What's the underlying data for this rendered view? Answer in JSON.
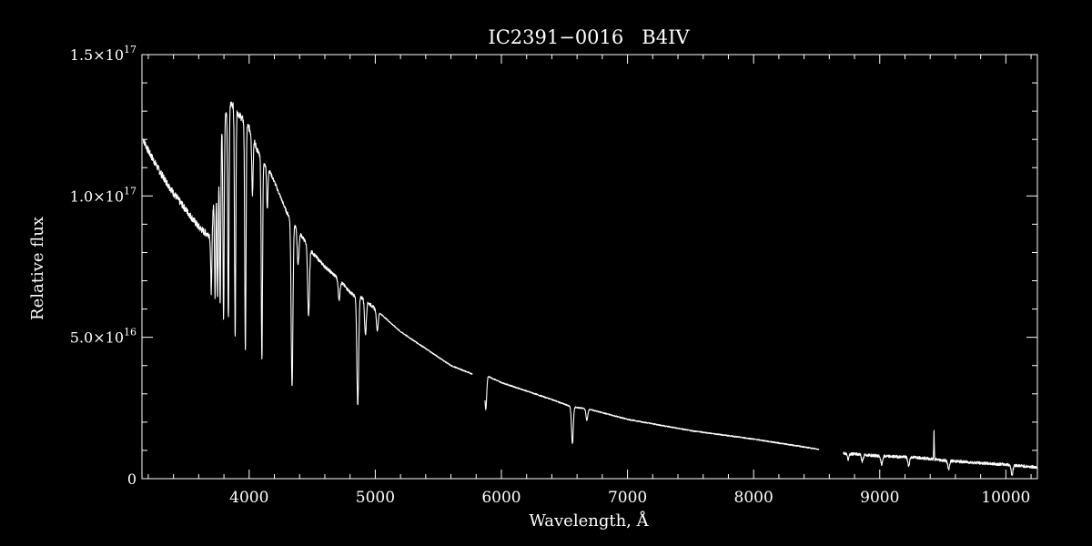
{
  "chart_data": {
    "type": "line",
    "title": "IC2391−0016   B4IV",
    "xlabel": "Wavelength, Å",
    "ylabel": "Relative flux",
    "xlim": [
      3150,
      10250
    ],
    "ylim": [
      0,
      1.5e+17
    ],
    "x_ticks": [
      {
        "value": 4000,
        "label": "4000"
      },
      {
        "value": 5000,
        "label": "5000"
      },
      {
        "value": 6000,
        "label": "6000"
      },
      {
        "value": 7000,
        "label": "7000"
      },
      {
        "value": 8000,
        "label": "8000"
      },
      {
        "value": 9000,
        "label": "9000"
      },
      {
        "value": 10000,
        "label": "10000"
      }
    ],
    "y_ticks": [
      {
        "value": 0,
        "mantissa": "0",
        "exponent": ""
      },
      {
        "value": 5e+16,
        "mantissa": "5.0×10",
        "exponent": "16"
      },
      {
        "value": 1e+17,
        "mantissa": "1.0×10",
        "exponent": "17"
      },
      {
        "value": 1.5e+17,
        "mantissa": "1.5×10",
        "exponent": "17"
      }
    ],
    "colors": {
      "background": "#000000",
      "foreground": "#ffffff"
    },
    "grid": false,
    "legend": "none",
    "series": [
      {
        "x": [
          3160,
          3200,
          3300,
          3400,
          3500,
          3600,
          3650,
          3700,
          3720,
          3750,
          3780,
          3820,
          3860,
          3900,
          3950,
          4000,
          4050,
          4100,
          4150,
          4200,
          4300,
          4400,
          4500,
          4600,
          4700,
          4800,
          4850,
          4900,
          5000,
          5100,
          5200,
          5400,
          5600,
          5770,
          5880,
          6000,
          6200,
          6400,
          6550,
          6700,
          7000,
          7500,
          8000,
          8500,
          8720,
          9000,
          9300,
          9500,
          9800,
          10000,
          10250
        ],
        "y": [
          1.2e+17,
          1.16e+17,
          1.08e+17,
          1.01e+17,
          9.5e+16,
          8.9e+16,
          8.7e+16,
          8.6e+16,
          1e+17,
          1.15e+17,
          1.25e+17,
          1.3e+17,
          1.33e+17,
          1.3e+17,
          1.27e+17,
          1.24e+17,
          1.18e+17,
          1.12e+17,
          1.1e+17,
          1.05e+17,
          9.4e+16,
          8.7e+16,
          8e+16,
          7.5e+16,
          7.1e+16,
          6.6e+16,
          6.4e+16,
          6.4e+16,
          6e+16,
          5.6e+16,
          5.2e+16,
          4.6e+16,
          4e+16,
          3.7e+16,
          3.65e+16,
          3.4e+16,
          3.1e+16,
          2.8e+16,
          2.55e+16,
          2.45e+16,
          2.1e+16,
          1.7e+16,
          1.4e+16,
          1.05e+16,
          9000000000000000.0,
          8000000000000000.0,
          7500000000000000.0,
          6500000000000000.0,
          5500000000000000.0,
          5000000000000000.0,
          4000000000000000.0
        ],
        "gaps": [
          [
            5770,
            5870
          ],
          [
            8520,
            8710
          ]
        ],
        "absorption_lines": [
          {
            "x": 3700,
            "depth": 2e+16
          },
          {
            "x": 3730,
            "depth": 4e+16
          },
          {
            "x": 3750,
            "depth": 5e+16
          },
          {
            "x": 3770,
            "depth": 6e+16
          },
          {
            "x": 3797,
            "depth": 7e+16
          },
          {
            "x": 3835,
            "depth": 7.5e+16
          },
          {
            "x": 3889,
            "depth": 8e+16
          },
          {
            "x": 3970,
            "depth": 8e+16
          },
          {
            "x": 4026,
            "depth": 2e+16
          },
          {
            "x": 4101,
            "depth": 7e+16
          },
          {
            "x": 4144,
            "depth": 1.5e+16
          },
          {
            "x": 4340,
            "depth": 5.8e+16
          },
          {
            "x": 4388,
            "depth": 1.2e+16
          },
          {
            "x": 4471,
            "depth": 2.5e+16
          },
          {
            "x": 4713,
            "depth": 7000000000000000.0
          },
          {
            "x": 4861,
            "depth": 3.8e+16
          },
          {
            "x": 4922,
            "depth": 1.2e+16
          },
          {
            "x": 5016,
            "depth": 7000000000000000.0
          },
          {
            "x": 5876,
            "depth": 1.2e+16
          },
          {
            "x": 6563,
            "depth": 1.3e+16
          },
          {
            "x": 6678,
            "depth": 4000000000000000.0
          },
          {
            "x": 8750,
            "depth": 2000000000000000.0
          },
          {
            "x": 8863,
            "depth": 2500000000000000.0
          },
          {
            "x": 9015,
            "depth": 3000000000000000.0
          },
          {
            "x": 9229,
            "depth": 3000000000000000.0
          },
          {
            "x": 9546,
            "depth": 3000000000000000.0
          },
          {
            "x": 10049,
            "depth": 3500000000000000.0
          }
        ],
        "emission_lines": [
          {
            "x": 9430,
            "height": 1e+16
          }
        ]
      }
    ]
  }
}
